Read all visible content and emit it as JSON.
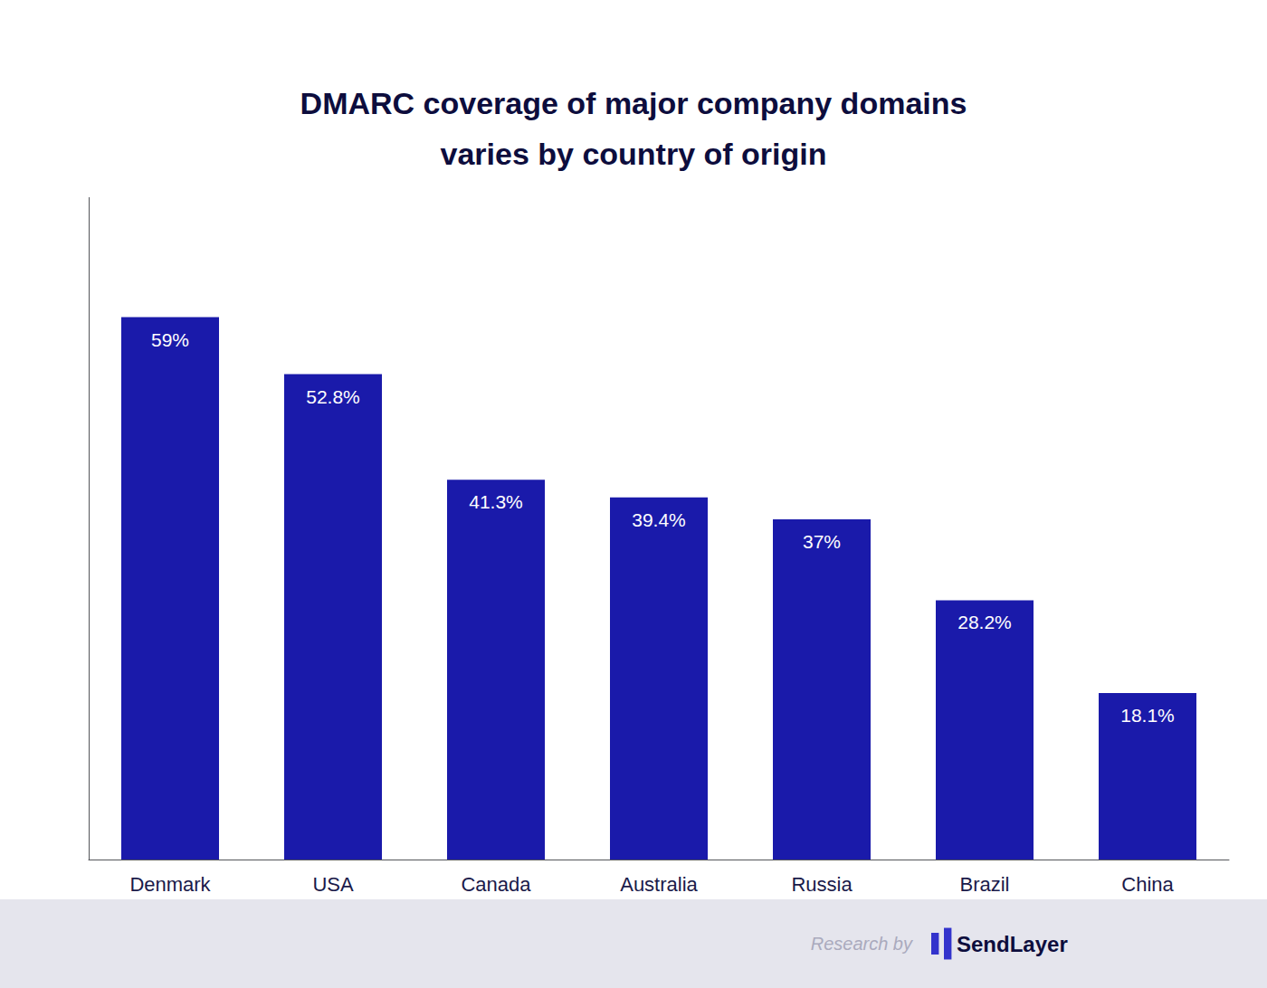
{
  "chart_data": {
    "type": "bar",
    "title": "DMARC coverage of major company domains",
    "subtitle": "varies by country of origin",
    "categories": [
      "Denmark",
      "USA",
      "Canada",
      "Australia",
      "Russia",
      "Brazil",
      "China"
    ],
    "values": [
      59.0,
      52.8,
      41.3,
      39.4,
      37.0,
      28.2,
      18.1
    ],
    "value_labels": [
      "59%",
      "52.8%",
      "41.3%",
      "39.4%",
      "37%",
      "28.2%",
      "18.1%"
    ],
    "data_labels": true,
    "color": "#1a1aaa",
    "ylim": [
      0,
      72
    ],
    "grid": false,
    "tick_labels": "x",
    "annotations": [
      "Research by",
      "SendLayer"
    ]
  }
}
